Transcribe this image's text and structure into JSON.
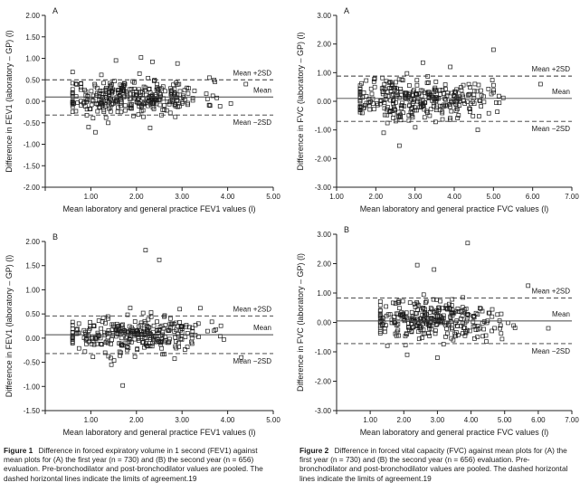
{
  "chart_data": [
    {
      "type": "scatter",
      "panel_letter": "A",
      "ylabel": "Difference in FEV1 (laboratory – GP) (l)",
      "xlabel": "Mean laboratory and general practice FEV1 values (l)",
      "xlim": [
        0,
        5
      ],
      "ylim": [
        -2,
        2
      ],
      "xticks": [
        "",
        "1.00",
        "2.00",
        "3.00",
        "4.00",
        "5.00"
      ],
      "yticks": [
        "-2.00",
        "-1.50",
        "-1.00",
        "-0.50",
        "0.00",
        "0.50",
        "1.00",
        "1.50",
        "2.00"
      ],
      "mean": 0.1,
      "upper": 0.5,
      "lower": -0.32,
      "label_mean": "Mean",
      "label_upper": "Mean +2SD",
      "label_lower": "Mean −2SD",
      "cloud": {
        "n": 330,
        "x_min": 0.6,
        "x_max": 4.5,
        "x_center": 1.9,
        "sd": 0.2,
        "seed": 11
      },
      "outliers": [
        [
          1.55,
          0.95
        ],
        [
          2.1,
          1.02
        ],
        [
          2.35,
          0.92
        ],
        [
          2.9,
          0.88
        ],
        [
          1.1,
          -0.72
        ],
        [
          2.3,
          -0.62
        ],
        [
          3.6,
          0.55
        ],
        [
          4.4,
          0.4
        ],
        [
          0.95,
          -0.6
        ]
      ]
    },
    {
      "type": "scatter",
      "panel_letter": "B",
      "ylabel": "Difference in FEV1 (laboratory – GP) (l)",
      "xlabel": "Mean laboratory and general practice FEV1 values (l)",
      "xlim": [
        0,
        5
      ],
      "ylim": [
        -1.5,
        2
      ],
      "xticks": [
        "",
        "1.00",
        "2.00",
        "3.00",
        "4.00",
        "5.00"
      ],
      "yticks": [
        "-1.50",
        "-1.00",
        "-0.50",
        "0.00",
        "0.50",
        "1.00",
        "1.50",
        "2.00"
      ],
      "mean": 0.07,
      "upper": 0.46,
      "lower": -0.32,
      "label_mean": "Mean",
      "label_upper": "Mean +2SD",
      "label_lower": "Mean −2SD",
      "cloud": {
        "n": 300,
        "x_min": 0.6,
        "x_max": 4.6,
        "x_center": 1.9,
        "sd": 0.18,
        "seed": 23
      },
      "outliers": [
        [
          2.2,
          1.82
        ],
        [
          2.5,
          1.62
        ],
        [
          1.7,
          -0.98
        ],
        [
          1.45,
          -0.55
        ],
        [
          2.95,
          0.6
        ],
        [
          4.3,
          -0.4
        ],
        [
          3.4,
          0.62
        ]
      ]
    },
    {
      "type": "scatter",
      "panel_letter": "A",
      "ylabel": "Difference in FVC (laboratory – GP) (l)",
      "xlabel": "Mean laboratory and general practice FVC values (l)",
      "xlim": [
        1,
        7
      ],
      "ylim": [
        -3,
        3
      ],
      "xticks": [
        "1.00",
        "2.00",
        "3.00",
        "4.00",
        "5.00",
        "6.00",
        "7.00"
      ],
      "yticks": [
        "-3.00",
        "-2.00",
        "-1.00",
        "0.00",
        "1.00",
        "2.00",
        "3.00"
      ],
      "mean": 0.1,
      "upper": 0.88,
      "lower": -0.7,
      "label_mean": "Mean",
      "label_upper": "Mean +2SD",
      "label_lower": "Mean −2SD",
      "cloud": {
        "n": 330,
        "x_min": 1.6,
        "x_max": 6.3,
        "x_center": 3.0,
        "sd": 0.36,
        "seed": 37
      },
      "outliers": [
        [
          5.0,
          1.8
        ],
        [
          2.6,
          -1.55
        ],
        [
          3.2,
          1.35
        ],
        [
          3.9,
          1.2
        ],
        [
          2.2,
          -1.1
        ],
        [
          4.6,
          -1.0
        ],
        [
          6.2,
          0.6
        ]
      ]
    },
    {
      "type": "scatter",
      "panel_letter": "B",
      "ylabel": "Difference in FVC (laboratory – GP) (l)",
      "xlabel": "Mean laboratory and general practice FVC values (l)",
      "xlim": [
        0,
        7
      ],
      "ylim": [
        -3,
        3
      ],
      "xticks": [
        "",
        "1.00",
        "2.00",
        "3.00",
        "4.00",
        "5.00",
        "6.00",
        "7.00"
      ],
      "yticks": [
        "-3.00",
        "-2.00",
        "-1.00",
        "0.00",
        "1.00",
        "2.00",
        "3.00"
      ],
      "mean": 0.05,
      "upper": 0.83,
      "lower": -0.72,
      "label_mean": "Mean",
      "label_upper": "Mean +2SD",
      "label_lower": "Mean −2SD",
      "cloud": {
        "n": 300,
        "x_min": 1.3,
        "x_max": 6.3,
        "x_center": 2.9,
        "sd": 0.34,
        "seed": 51
      },
      "outliers": [
        [
          3.9,
          2.7
        ],
        [
          2.4,
          1.95
        ],
        [
          2.9,
          1.8
        ],
        [
          2.1,
          -1.1
        ],
        [
          5.7,
          1.25
        ],
        [
          3.0,
          -1.2
        ],
        [
          6.3,
          -0.2
        ]
      ]
    }
  ],
  "captions": [
    {
      "label": "Figure 1",
      "text": "Difference in forced expiratory volume in 1 second (FEV1) against mean plots for (A) the first year (n = 730) and (B) the second year (n = 656) evaluation. Pre-bronchodilator and post-bronchodilator values are pooled. The dashed horizontal lines indicate the limits of agreement.19"
    },
    {
      "label": "Figure 2",
      "text": "Difference in forced vital capacity (FVC) against mean plots for (A) the first year (n = 730) and (B) the second year (n = 656) evaluation. Pre-bronchodilator and post-bronchodilator values are pooled. The dashed horizontal lines indicate the limits of agreement.19"
    }
  ]
}
